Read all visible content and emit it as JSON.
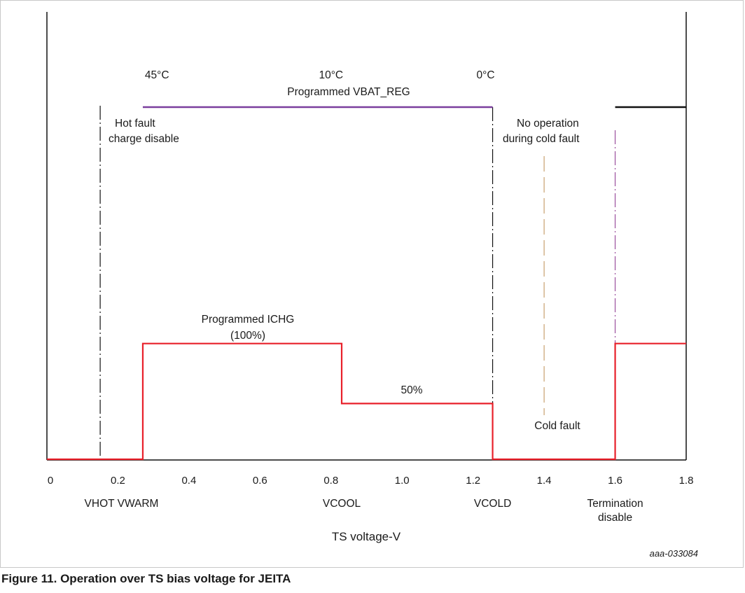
{
  "caption": "Figure 11.  Operation over TS bias voltage for JEITA",
  "figure_id": "aaa-033084",
  "colors": {
    "ichg_line": "#e8202a",
    "vbat_line": "#7b3f9e",
    "term_line": "#111111",
    "cold_fault_marker": "#c8a070",
    "termination_marker": "#9b4f9e",
    "dashed_marker": "#111111"
  },
  "chart_data": {
    "type": "line",
    "xlabel": "TS voltage-V",
    "xlim": [
      0,
      1.8
    ],
    "ylim": [
      0,
      1.1
    ],
    "x_ticks": [
      "0",
      "0.2",
      "0.4",
      "0.6",
      "0.8",
      "1.0",
      "1.2",
      "1.4",
      "1.6",
      "1.8"
    ],
    "x_tick_values": [
      0,
      0.2,
      0.4,
      0.6,
      0.8,
      1.0,
      1.2,
      1.4,
      1.6,
      1.8
    ],
    "series": [
      {
        "key": "ichg",
        "x": [
          0,
          0.27,
          0.27,
          0.83,
          0.83,
          1.255,
          1.255,
          1.6,
          1.6,
          1.8
        ],
        "y": [
          0,
          0,
          0.33,
          0.33,
          0.16,
          0.16,
          0,
          0,
          0.33,
          0.33
        ]
      },
      {
        "key": "vbat",
        "x": [
          0.27,
          1.255
        ],
        "y": [
          1.0,
          1.0
        ]
      },
      {
        "key": "termination",
        "x": [
          1.6,
          1.8
        ],
        "y": [
          1.0,
          1.0
        ]
      }
    ],
    "vertical_markers": [
      {
        "key": "vhot",
        "x": 0.15,
        "style": "dash-dot"
      },
      {
        "key": "vcold",
        "x": 1.255,
        "style": "dash-dot"
      },
      {
        "key": "cold-fault",
        "x": 1.4,
        "style": "long-dash"
      },
      {
        "key": "termination",
        "x": 1.6,
        "style": "dash-dot"
      }
    ],
    "threshold_labels": [
      {
        "text": "VHOT VWARM",
        "x": 0.21
      },
      {
        "text": "VCOOL",
        "x": 0.83
      },
      {
        "text": "VCOLD",
        "x": 1.255
      },
      {
        "text": "Termination",
        "x": 1.6
      },
      {
        "text": "disable",
        "x": 1.6
      }
    ],
    "temperature_labels": [
      {
        "text": "45°C",
        "x": 0.31
      },
      {
        "text": "10°C",
        "x": 0.8
      },
      {
        "text": "0°C",
        "x": 1.255
      }
    ],
    "annotations": [
      {
        "key": "vbat-label",
        "text": "Programmed VBAT_REG"
      },
      {
        "key": "hot-fault-1",
        "text": "Hot fault"
      },
      {
        "key": "hot-fault-2",
        "text": "charge disable"
      },
      {
        "key": "no-op-1",
        "text": "No operation"
      },
      {
        "key": "no-op-2",
        "text": "during cold fault"
      },
      {
        "key": "ichg-label-1",
        "text": "Programmed ICHG"
      },
      {
        "key": "ichg-label-2",
        "text": "(100%)"
      },
      {
        "key": "fifty-label",
        "text": "50%"
      },
      {
        "key": "cold-fault-label",
        "text": "Cold fault"
      }
    ]
  }
}
